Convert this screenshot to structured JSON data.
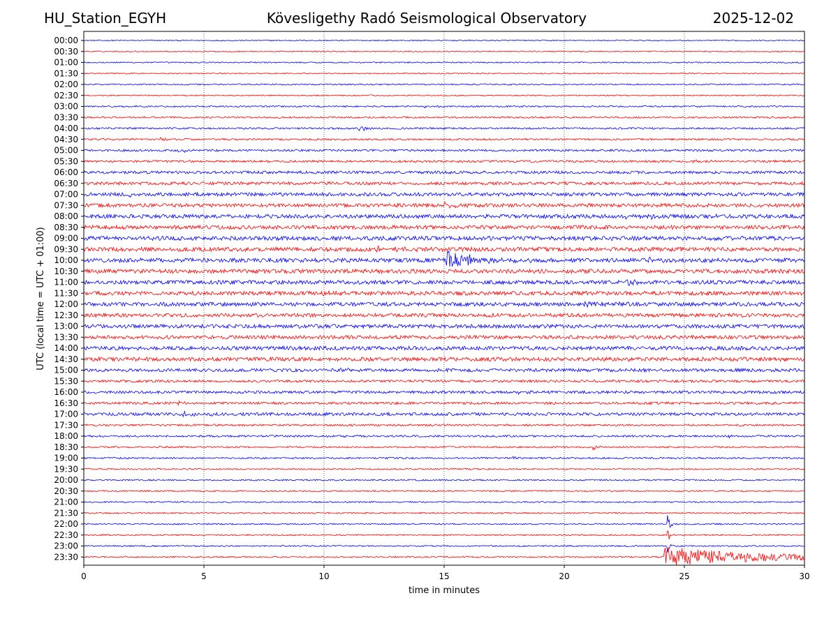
{
  "header": {
    "station": "HU_Station_EGYH",
    "observatory": "Kövesligethy Radó Seismological Observatory",
    "date": "2025-12-02"
  },
  "chart_data": {
    "type": "line",
    "title": "Kövesligethy Radó Seismological Observatory",
    "xlabel": "time in minutes",
    "ylabel": "UTC (local time = UTC + 01:00)",
    "xlim": [
      0,
      30
    ],
    "xticks": [
      "0",
      "5",
      "10",
      "15",
      "20",
      "25",
      "30"
    ],
    "xtick_values": [
      0,
      5,
      10,
      15,
      20,
      25,
      30
    ],
    "grid": "vertical dotted at x ticks",
    "series_colors": [
      "#0000ff",
      "#ff0000"
    ],
    "rows": [
      {
        "label": "00:00",
        "amp": 0.8,
        "events": []
      },
      {
        "label": "00:30",
        "amp": 0.8,
        "events": []
      },
      {
        "label": "01:00",
        "amp": 0.9,
        "events": []
      },
      {
        "label": "01:30",
        "amp": 0.8,
        "events": []
      },
      {
        "label": "02:00",
        "amp": 1.0,
        "events": []
      },
      {
        "label": "02:30",
        "amp": 0.9,
        "events": []
      },
      {
        "label": "03:00",
        "amp": 1.1,
        "events": [
          {
            "t": 14.2,
            "a": 2.0,
            "d": 0.5
          }
        ]
      },
      {
        "label": "03:30",
        "amp": 1.2,
        "events": []
      },
      {
        "label": "04:00",
        "amp": 1.3,
        "events": [
          {
            "t": 11.45,
            "a": 5.0,
            "d": 0.3
          }
        ]
      },
      {
        "label": "04:30",
        "amp": 1.3,
        "events": [
          {
            "t": 3.2,
            "a": 2.0,
            "d": 0.4
          }
        ]
      },
      {
        "label": "05:00",
        "amp": 1.5,
        "events": [
          {
            "t": 3.9,
            "a": 2.5,
            "d": 0.5
          }
        ]
      },
      {
        "label": "05:30",
        "amp": 1.6,
        "events": [
          {
            "t": 25.3,
            "a": 2.2,
            "d": 0.4
          }
        ]
      },
      {
        "label": "06:00",
        "amp": 2.0,
        "events": []
      },
      {
        "label": "06:30",
        "amp": 2.2,
        "events": []
      },
      {
        "label": "07:00",
        "amp": 2.5,
        "events": [
          {
            "t": 1.75,
            "a": 5.0,
            "d": 0.3
          }
        ]
      },
      {
        "label": "07:30",
        "amp": 2.6,
        "events": [
          {
            "t": 14.9,
            "a": 4.0,
            "d": 0.5
          }
        ]
      },
      {
        "label": "08:00",
        "amp": 2.8,
        "events": [
          {
            "t": 22.5,
            "a": 3.0,
            "d": 2.0
          }
        ]
      },
      {
        "label": "08:30",
        "amp": 2.8,
        "events": []
      },
      {
        "label": "09:00",
        "amp": 3.0,
        "events": []
      },
      {
        "label": "09:30",
        "amp": 3.0,
        "events": [
          {
            "t": 12.0,
            "a": 3.0,
            "d": 1.5
          }
        ]
      },
      {
        "label": "10:00",
        "amp": 3.0,
        "events": [
          {
            "t": 15.1,
            "a": 14.0,
            "d": 1.2
          },
          {
            "t": 23.5,
            "a": 3.0,
            "d": 0.5
          }
        ]
      },
      {
        "label": "10:30",
        "amp": 3.0,
        "events": []
      },
      {
        "label": "11:00",
        "amp": 2.8,
        "events": [
          {
            "t": 22.6,
            "a": 6.0,
            "d": 0.6
          }
        ]
      },
      {
        "label": "11:30",
        "amp": 2.8,
        "events": [
          {
            "t": 9.7,
            "a": 3.5,
            "d": 0.6
          }
        ]
      },
      {
        "label": "12:00",
        "amp": 2.8,
        "events": [
          {
            "t": 20.5,
            "a": 4.0,
            "d": 1.0
          }
        ]
      },
      {
        "label": "12:30",
        "amp": 2.7,
        "events": []
      },
      {
        "label": "13:00",
        "amp": 2.7,
        "events": []
      },
      {
        "label": "13:30",
        "amp": 2.6,
        "events": []
      },
      {
        "label": "14:00",
        "amp": 2.8,
        "events": []
      },
      {
        "label": "14:30",
        "amp": 2.8,
        "events": []
      },
      {
        "label": "15:00",
        "amp": 2.3,
        "events": [
          {
            "t": 10.4,
            "a": 3.0,
            "d": 0.6
          }
        ]
      },
      {
        "label": "15:30",
        "amp": 1.8,
        "events": []
      },
      {
        "label": "16:00",
        "amp": 2.0,
        "events": [
          {
            "t": 18.1,
            "a": 3.0,
            "d": 0.4
          }
        ]
      },
      {
        "label": "16:30",
        "amp": 1.8,
        "events": [
          {
            "t": 3.9,
            "a": 3.0,
            "d": 0.3
          }
        ]
      },
      {
        "label": "17:00",
        "amp": 2.2,
        "events": [
          {
            "t": 3.8,
            "a": 3.0,
            "d": 1.2
          }
        ]
      },
      {
        "label": "17:30",
        "amp": 1.4,
        "events": []
      },
      {
        "label": "18:00",
        "amp": 1.4,
        "events": [
          {
            "t": 10.8,
            "a": 2.0,
            "d": 0.4
          },
          {
            "t": 26.8,
            "a": 2.0,
            "d": 0.4
          }
        ]
      },
      {
        "label": "18:30",
        "amp": 1.2,
        "events": [
          {
            "t": 21.2,
            "a": 3.5,
            "d": 0.2
          }
        ]
      },
      {
        "label": "19:00",
        "amp": 1.2,
        "events": [
          {
            "t": 17.8,
            "a": 2.0,
            "d": 0.4
          }
        ]
      },
      {
        "label": "19:30",
        "amp": 1.0,
        "events": []
      },
      {
        "label": "20:00",
        "amp": 1.0,
        "events": []
      },
      {
        "label": "20:30",
        "amp": 1.0,
        "events": []
      },
      {
        "label": "21:00",
        "amp": 1.0,
        "events": []
      },
      {
        "label": "21:30",
        "amp": 1.0,
        "events": []
      },
      {
        "label": "22:00",
        "amp": 1.0,
        "events": [
          {
            "t": 24.3,
            "a": 16.0,
            "d": 0.1
          }
        ]
      },
      {
        "label": "22:30",
        "amp": 1.0,
        "events": [
          {
            "t": 24.3,
            "a": 12.0,
            "d": 0.1
          }
        ]
      },
      {
        "label": "23:00",
        "amp": 1.0,
        "events": [
          {
            "t": 24.3,
            "a": 10.0,
            "d": 0.1
          }
        ]
      },
      {
        "label": "23:30",
        "amp": 1.0,
        "events": [
          {
            "t": 24.15,
            "a": 14.0,
            "d": 4.5
          }
        ]
      }
    ]
  }
}
